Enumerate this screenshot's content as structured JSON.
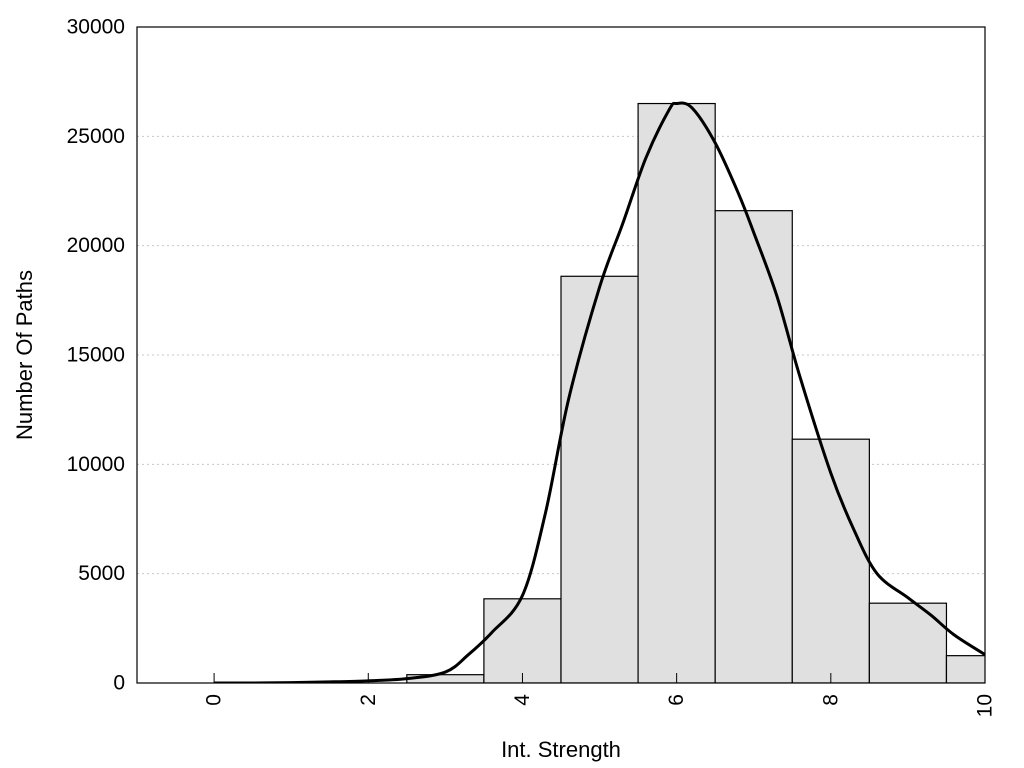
{
  "chart_data": {
    "type": "bar",
    "subtype": "histogram-with-density-curve",
    "title": "",
    "xlabel": "Int. Strength",
    "ylabel": "Number Of Paths",
    "xlim": [
      -1,
      10
    ],
    "ylim": [
      0,
      30000
    ],
    "x_ticks": [
      "0",
      "2",
      "4",
      "6",
      "8",
      "10"
    ],
    "x_tick_values": [
      0,
      2,
      4,
      6,
      8,
      10
    ],
    "x_tick_rotation": "vertical",
    "y_ticks": [
      "0",
      "5000",
      "10000",
      "15000",
      "20000",
      "25000",
      "30000"
    ],
    "y_tick_values": [
      0,
      5000,
      10000,
      15000,
      20000,
      25000,
      30000
    ],
    "grid": {
      "horizontal": true,
      "style": "dotted"
    },
    "legend": "none",
    "bins": [
      {
        "from": -0.5,
        "to": 0.5,
        "value": 0
      },
      {
        "from": 0.5,
        "to": 1.5,
        "value": 0
      },
      {
        "from": 1.5,
        "to": 2.5,
        "value": 0
      },
      {
        "from": 2.5,
        "to": 3.5,
        "value": 380
      },
      {
        "from": 3.5,
        "to": 4.5,
        "value": 3850
      },
      {
        "from": 4.5,
        "to": 5.5,
        "value": 18600
      },
      {
        "from": 5.5,
        "to": 6.5,
        "value": 26500
      },
      {
        "from": 6.5,
        "to": 7.5,
        "value": 21600
      },
      {
        "from": 7.5,
        "to": 8.5,
        "value": 11150
      },
      {
        "from": 8.5,
        "to": 9.5,
        "value": 3650
      },
      {
        "from": 9.5,
        "to": 10.5,
        "value": 1250
      }
    ],
    "curve": {
      "x": [
        0,
        0.5,
        1,
        1.5,
        2,
        2.5,
        3,
        3.3,
        3.6,
        4,
        4.3,
        4.6,
        5,
        5.3,
        5.6,
        5.9,
        6,
        6.2,
        6.5,
        6.8,
        7,
        7.3,
        7.6,
        8,
        8.3,
        8.6,
        9,
        9.3,
        9.6,
        10
      ],
      "y": [
        0,
        0,
        20,
        50,
        100,
        200,
        500,
        1300,
        2300,
        4000,
        7800,
        13000,
        18100,
        21000,
        24000,
        26200,
        26500,
        26300,
        24700,
        22400,
        20600,
        17700,
        14000,
        9600,
        7000,
        5000,
        3900,
        3100,
        2200,
        1300
      ]
    },
    "colors": {
      "bar_fill": "#e0e0e0",
      "bar_stroke": "#000000",
      "curve": "#000000",
      "grid": "#c8c8c8",
      "frame": "#000000"
    }
  }
}
